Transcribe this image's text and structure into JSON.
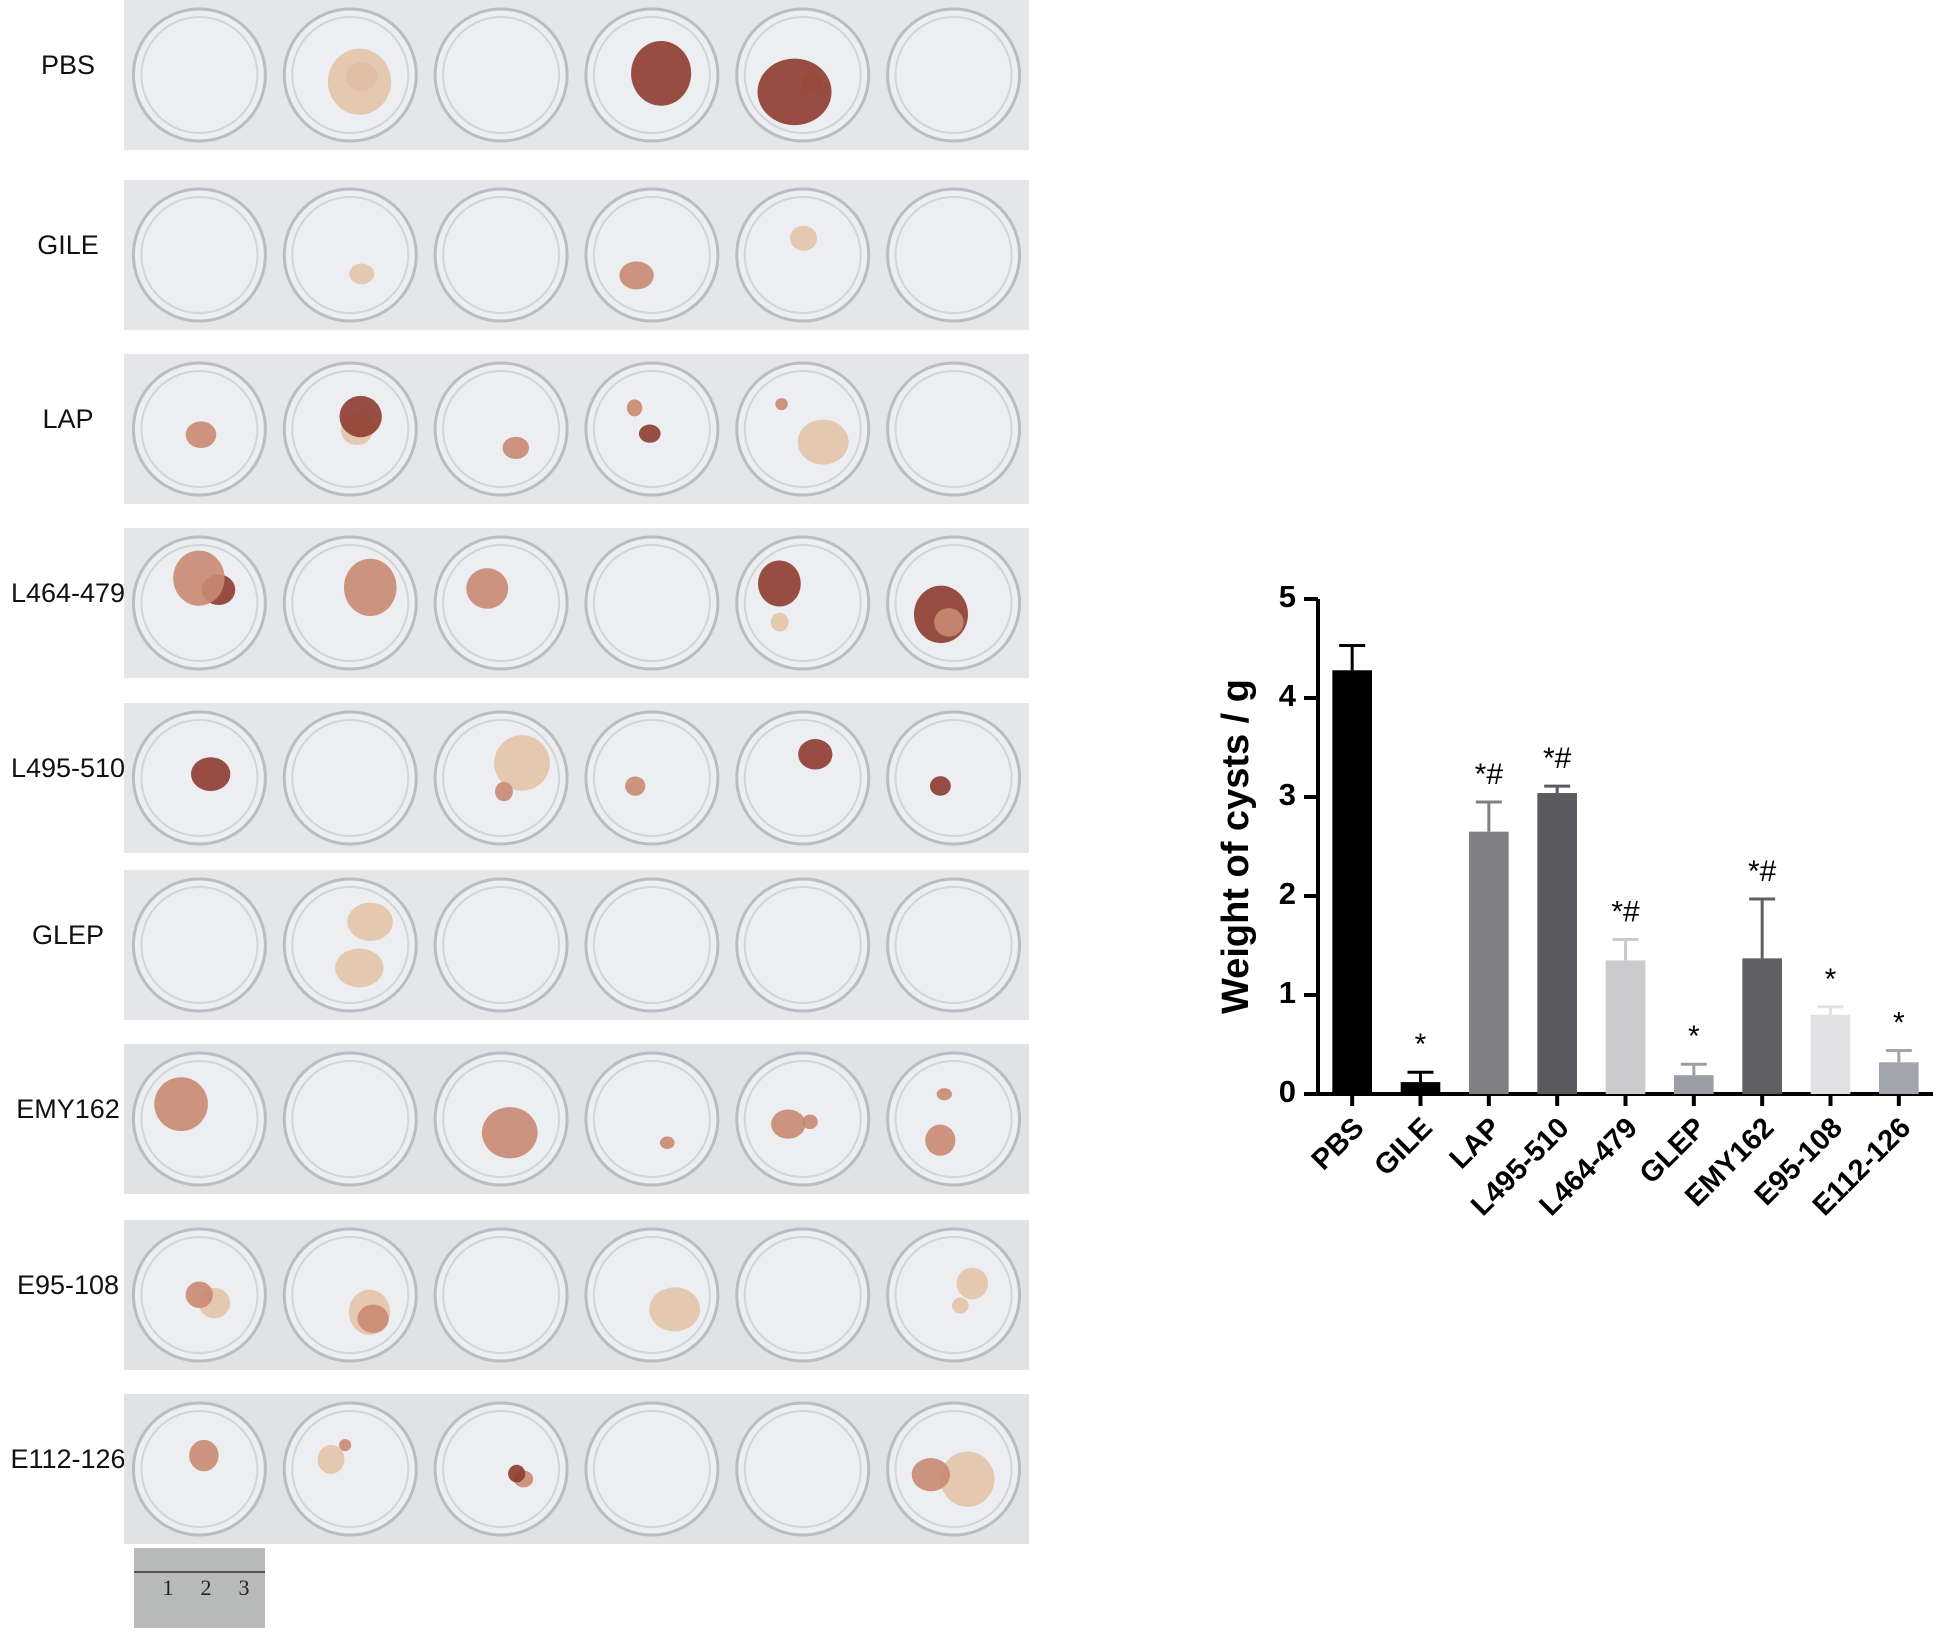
{
  "panel": {
    "rows": [
      "PBS",
      "GILE",
      "LAP",
      "L464-479",
      "L495-510",
      "GLEP",
      "EMY162",
      "E95-108",
      "E112-126"
    ],
    "ruler_labels": [
      "1",
      "2",
      "3"
    ]
  },
  "chart_data": {
    "type": "bar",
    "ylabel": "Weight of cysts / g",
    "categories": [
      "PBS",
      "GILE",
      "LAP",
      "L495-510",
      "L464-479",
      "GLEP",
      "EMY162",
      "E95-108",
      "E112-126"
    ],
    "values": [
      4.28,
      0.12,
      2.65,
      3.04,
      1.35,
      0.19,
      1.37,
      0.8,
      0.32
    ],
    "errors": [
      0.25,
      0.1,
      0.3,
      0.07,
      0.21,
      0.11,
      0.6,
      0.08,
      0.12
    ],
    "annotations": [
      null,
      "*",
      "*#",
      "*#",
      "*#",
      "*",
      "*#",
      "*",
      "*"
    ],
    "colors": [
      "#000000",
      "#000000",
      "#808083",
      "#5b5b5f",
      "#cbcbcd",
      "#9c9ea6",
      "#5f5f63",
      "#e1e1e3",
      "#a2a4ae"
    ],
    "ylim": [
      0,
      5
    ],
    "yticks": [
      0,
      1,
      2,
      3,
      4,
      5
    ]
  }
}
